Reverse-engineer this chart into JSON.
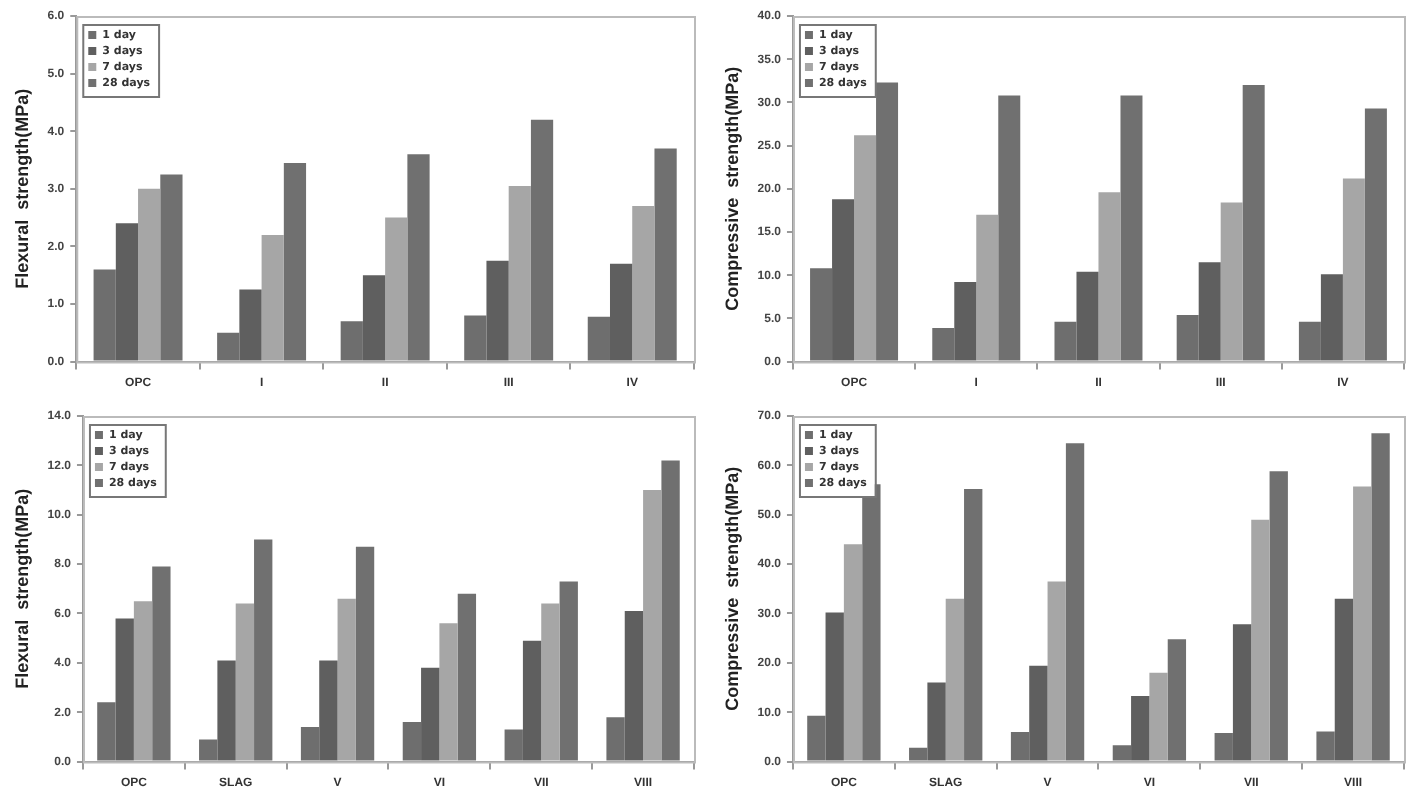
{
  "chart_data": [
    {
      "type": "bar",
      "ylabel": "Flexural  strength(MPa)",
      "categories": [
        "OPC",
        "I",
        "II",
        "III",
        "IV"
      ],
      "ylim": [
        0,
        6
      ],
      "yticks": [
        {
          "value": 0,
          "label": "0.0"
        },
        {
          "value": 1,
          "label": "1.0"
        },
        {
          "value": 2,
          "label": "2.0"
        },
        {
          "value": 3,
          "label": "3.0"
        },
        {
          "value": 4,
          "label": "4.0"
        },
        {
          "value": 5,
          "label": "5.0"
        },
        {
          "value": 6,
          "label": "6.0"
        }
      ],
      "grid": false,
      "legend": "top left",
      "series": [
        {
          "name": "1 day",
          "color": "#6e6e6e",
          "values": [
            1.6,
            0.5,
            0.7,
            0.8,
            0.78
          ]
        },
        {
          "name": "3 days",
          "color": "#5f5f5f",
          "values": [
            2.4,
            1.25,
            1.5,
            1.75,
            1.7
          ]
        },
        {
          "name": "7 days",
          "color": "#a6a6a6",
          "values": [
            3.0,
            2.2,
            2.5,
            3.05,
            2.7
          ]
        },
        {
          "name": "28 days",
          "color": "#707070",
          "values": [
            3.25,
            3.45,
            3.6,
            4.2,
            3.7
          ]
        }
      ]
    },
    {
      "type": "bar",
      "ylabel": "Compressive  strength(MPa)",
      "categories": [
        "OPC",
        "I",
        "II",
        "III",
        "IV"
      ],
      "ylim": [
        0,
        40
      ],
      "yticks": [
        {
          "value": 0,
          "label": "0.0"
        },
        {
          "value": 5,
          "label": "5.0"
        },
        {
          "value": 10,
          "label": "10.0"
        },
        {
          "value": 15,
          "label": "15.0"
        },
        {
          "value": 20,
          "label": "20.0"
        },
        {
          "value": 25,
          "label": "25.0"
        },
        {
          "value": 30,
          "label": "30.0"
        },
        {
          "value": 35,
          "label": "35.0"
        },
        {
          "value": 40,
          "label": "40.0"
        }
      ],
      "grid": false,
      "legend": "top left",
      "series": [
        {
          "name": "1 day",
          "color": "#6e6e6e",
          "values": [
            10.8,
            3.9,
            4.6,
            5.4,
            4.6
          ]
        },
        {
          "name": "3 days",
          "color": "#5f5f5f",
          "values": [
            18.8,
            9.2,
            10.4,
            11.5,
            10.1
          ]
        },
        {
          "name": "7 days",
          "color": "#a6a6a6",
          "values": [
            26.2,
            17.0,
            19.6,
            18.4,
            21.2
          ]
        },
        {
          "name": "28 days",
          "color": "#707070",
          "values": [
            32.3,
            30.8,
            30.8,
            32.0,
            29.3
          ]
        }
      ]
    },
    {
      "type": "bar",
      "ylabel": "Flexural  strength(MPa)",
      "categories": [
        "OPC",
        "SLAG",
        "V",
        "VI",
        "VII",
        "VIII"
      ],
      "ylim": [
        0,
        14
      ],
      "yticks": [
        {
          "value": 0,
          "label": "0.0"
        },
        {
          "value": 2,
          "label": "2.0"
        },
        {
          "value": 4,
          "label": "4.0"
        },
        {
          "value": 6,
          "label": "6.0"
        },
        {
          "value": 8,
          "label": "8.0"
        },
        {
          "value": 10,
          "label": "10.0"
        },
        {
          "value": 12,
          "label": "12.0"
        },
        {
          "value": 14,
          "label": "14.0"
        }
      ],
      "grid": false,
      "legend": "top left",
      "series": [
        {
          "name": "1 day",
          "color": "#6e6e6e",
          "values": [
            2.4,
            0.9,
            1.4,
            1.6,
            1.3,
            1.8
          ]
        },
        {
          "name": "3 days",
          "color": "#5f5f5f",
          "values": [
            5.8,
            4.1,
            4.1,
            3.8,
            4.9,
            6.1
          ]
        },
        {
          "name": "7 days",
          "color": "#a6a6a6",
          "values": [
            6.5,
            6.4,
            6.6,
            5.6,
            6.4,
            11.0
          ]
        },
        {
          "name": "28 days",
          "color": "#707070",
          "values": [
            7.9,
            9.0,
            8.7,
            6.8,
            7.3,
            12.2
          ]
        }
      ]
    },
    {
      "type": "bar",
      "ylabel": "Compressive  strength(MPa)",
      "categories": [
        "OPC",
        "SLAG",
        "V",
        "VI",
        "VII",
        "VIII"
      ],
      "ylim": [
        0,
        70
      ],
      "yticks": [
        {
          "value": 0,
          "label": "0.0"
        },
        {
          "value": 10,
          "label": "10.0"
        },
        {
          "value": 20,
          "label": "20.0"
        },
        {
          "value": 30,
          "label": "30.0"
        },
        {
          "value": 40,
          "label": "40.0"
        },
        {
          "value": 50,
          "label": "50.0"
        },
        {
          "value": 60,
          "label": "60.0"
        },
        {
          "value": 70,
          "label": "70.0"
        }
      ],
      "grid": false,
      "legend": "top left",
      "series": [
        {
          "name": "1 day",
          "color": "#6e6e6e",
          "values": [
            9.3,
            2.8,
            6.0,
            3.3,
            5.8,
            6.1
          ]
        },
        {
          "name": "3 days",
          "color": "#5f5f5f",
          "values": [
            30.2,
            16.0,
            19.4,
            13.3,
            27.8,
            33.0
          ]
        },
        {
          "name": "7 days",
          "color": "#a6a6a6",
          "values": [
            44.0,
            33.0,
            36.5,
            18.0,
            49.0,
            55.7
          ]
        },
        {
          "name": "28 days",
          "color": "#707070",
          "values": [
            56.2,
            55.2,
            64.5,
            24.8,
            58.8,
            66.5
          ]
        }
      ]
    }
  ]
}
